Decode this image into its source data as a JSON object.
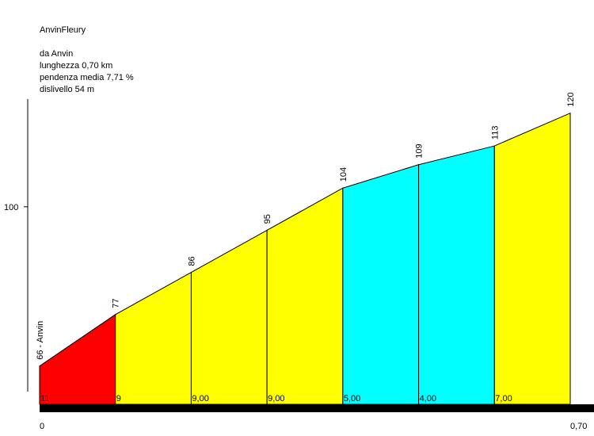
{
  "chart_data": {
    "type": "area",
    "title": "AnvinFleury",
    "info": [
      "da Anvin",
      "lunghezza 0,70 km",
      "pendenza media 7,71 %",
      "dislivello 54 m"
    ],
    "x": [
      0,
      0.1,
      0.2,
      0.3,
      0.4,
      0.5,
      0.6,
      0.7
    ],
    "values": [
      66,
      77,
      86,
      95,
      104,
      109,
      113,
      120
    ],
    "value_labels": [
      "66 - Anvin",
      "77",
      "86",
      "95",
      "104",
      "109",
      "113",
      "120"
    ],
    "segments": {
      "values": [
        11,
        9,
        9,
        9,
        5,
        4,
        7
      ],
      "value_labels": [
        "11",
        "9",
        "9,00",
        "9,00",
        "5,00",
        "4,00",
        "7,00"
      ],
      "colors": [
        "#ff0000",
        "#ffff00",
        "#ffff00",
        "#ffff00",
        "#00ffff",
        "#00ffff",
        "#ffff00"
      ]
    },
    "xlim": [
      0,
      0.7
    ],
    "xticks": [
      0,
      {
        "value": 0.7,
        "label": "0,70"
      }
    ],
    "ylim": [
      58,
      123
    ],
    "yticks": [
      100
    ]
  }
}
